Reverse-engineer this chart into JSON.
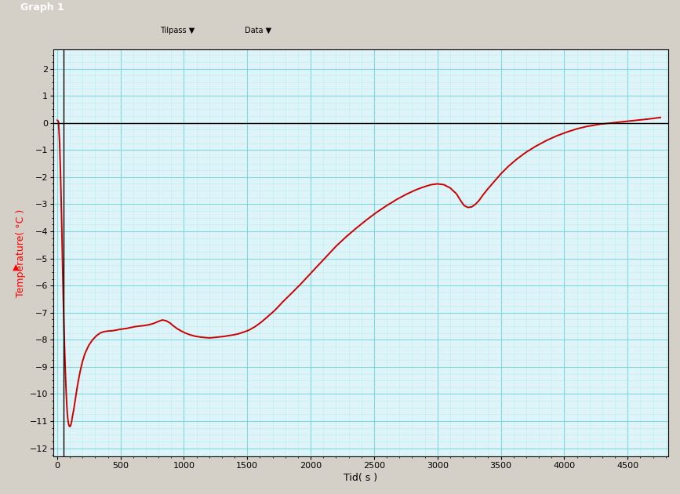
{
  "title": "Graph 1",
  "xlabel": "Tid( s )",
  "ylabel": "Temperature( °C )",
  "xlim": [
    -30,
    4820
  ],
  "ylim": [
    -12.3,
    2.7
  ],
  "yticks": [
    -12,
    -11,
    -10,
    -9,
    -8,
    -7,
    -6,
    -5,
    -4,
    -3,
    -2,
    -1,
    0,
    1,
    2
  ],
  "xticks": [
    0,
    500,
    1000,
    1500,
    2000,
    2500,
    3000,
    3500,
    4000,
    4500
  ],
  "grid_major_color": "#7dd8e0",
  "grid_minor_color": "#b8eef2",
  "background_color": "#d4ecf0",
  "plot_bg_color": "#dff4f8",
  "line_color": "#cc0000",
  "line_width": 1.4,
  "vertical_line_x": 50,
  "titlebar_color": "#d4d0c8",
  "toolbar_color": "#d4d0c8",
  "curve_points": [
    [
      0,
      0.1
    ],
    [
      5,
      0.08
    ],
    [
      10,
      0.05
    ],
    [
      15,
      -0.3
    ],
    [
      20,
      -0.8
    ],
    [
      25,
      -1.6
    ],
    [
      30,
      -2.5
    ],
    [
      35,
      -3.5
    ],
    [
      40,
      -4.6
    ],
    [
      45,
      -5.7
    ],
    [
      50,
      -6.8
    ],
    [
      55,
      -7.7
    ],
    [
      60,
      -8.5
    ],
    [
      65,
      -9.2
    ],
    [
      70,
      -9.8
    ],
    [
      75,
      -10.3
    ],
    [
      80,
      -10.7
    ],
    [
      85,
      -10.95
    ],
    [
      90,
      -11.1
    ],
    [
      95,
      -11.18
    ],
    [
      100,
      -11.2
    ],
    [
      105,
      -11.18
    ],
    [
      110,
      -11.1
    ],
    [
      115,
      -11.0
    ],
    [
      120,
      -10.85
    ],
    [
      130,
      -10.6
    ],
    [
      140,
      -10.3
    ],
    [
      150,
      -10.0
    ],
    [
      160,
      -9.7
    ],
    [
      180,
      -9.2
    ],
    [
      200,
      -8.8
    ],
    [
      220,
      -8.5
    ],
    [
      250,
      -8.2
    ],
    [
      280,
      -8.0
    ],
    [
      310,
      -7.85
    ],
    [
      340,
      -7.75
    ],
    [
      370,
      -7.7
    ],
    [
      400,
      -7.68
    ],
    [
      430,
      -7.67
    ],
    [
      460,
      -7.65
    ],
    [
      490,
      -7.62
    ],
    [
      520,
      -7.6
    ],
    [
      550,
      -7.58
    ],
    [
      580,
      -7.55
    ],
    [
      610,
      -7.52
    ],
    [
      640,
      -7.5
    ],
    [
      680,
      -7.48
    ],
    [
      720,
      -7.45
    ],
    [
      760,
      -7.4
    ],
    [
      800,
      -7.32
    ],
    [
      830,
      -7.27
    ],
    [
      860,
      -7.3
    ],
    [
      890,
      -7.38
    ],
    [
      920,
      -7.5
    ],
    [
      950,
      -7.6
    ],
    [
      980,
      -7.68
    ],
    [
      1010,
      -7.75
    ],
    [
      1050,
      -7.82
    ],
    [
      1090,
      -7.87
    ],
    [
      1130,
      -7.9
    ],
    [
      1170,
      -7.92
    ],
    [
      1200,
      -7.93
    ],
    [
      1230,
      -7.92
    ],
    [
      1270,
      -7.9
    ],
    [
      1310,
      -7.88
    ],
    [
      1350,
      -7.85
    ],
    [
      1390,
      -7.82
    ],
    [
      1430,
      -7.78
    ],
    [
      1470,
      -7.72
    ],
    [
      1510,
      -7.65
    ],
    [
      1560,
      -7.52
    ],
    [
      1610,
      -7.35
    ],
    [
      1660,
      -7.15
    ],
    [
      1720,
      -6.9
    ],
    [
      1780,
      -6.6
    ],
    [
      1850,
      -6.28
    ],
    [
      1920,
      -5.95
    ],
    [
      1990,
      -5.6
    ],
    [
      2060,
      -5.25
    ],
    [
      2130,
      -4.9
    ],
    [
      2200,
      -4.55
    ],
    [
      2280,
      -4.2
    ],
    [
      2360,
      -3.88
    ],
    [
      2440,
      -3.58
    ],
    [
      2520,
      -3.3
    ],
    [
      2600,
      -3.05
    ],
    [
      2680,
      -2.82
    ],
    [
      2760,
      -2.62
    ],
    [
      2840,
      -2.45
    ],
    [
      2900,
      -2.35
    ],
    [
      2950,
      -2.28
    ],
    [
      3000,
      -2.25
    ],
    [
      3050,
      -2.28
    ],
    [
      3100,
      -2.4
    ],
    [
      3150,
      -2.62
    ],
    [
      3180,
      -2.85
    ],
    [
      3210,
      -3.05
    ],
    [
      3240,
      -3.12
    ],
    [
      3270,
      -3.1
    ],
    [
      3300,
      -3.0
    ],
    [
      3330,
      -2.85
    ],
    [
      3360,
      -2.65
    ],
    [
      3400,
      -2.42
    ],
    [
      3450,
      -2.15
    ],
    [
      3500,
      -1.88
    ],
    [
      3560,
      -1.6
    ],
    [
      3630,
      -1.32
    ],
    [
      3700,
      -1.08
    ],
    [
      3780,
      -0.85
    ],
    [
      3860,
      -0.65
    ],
    [
      3940,
      -0.48
    ],
    [
      4020,
      -0.34
    ],
    [
      4100,
      -0.22
    ],
    [
      4180,
      -0.13
    ],
    [
      4280,
      -0.05
    ],
    [
      4380,
      0.0
    ],
    [
      4480,
      0.05
    ],
    [
      4580,
      0.1
    ],
    [
      4680,
      0.15
    ],
    [
      4760,
      0.2
    ]
  ]
}
